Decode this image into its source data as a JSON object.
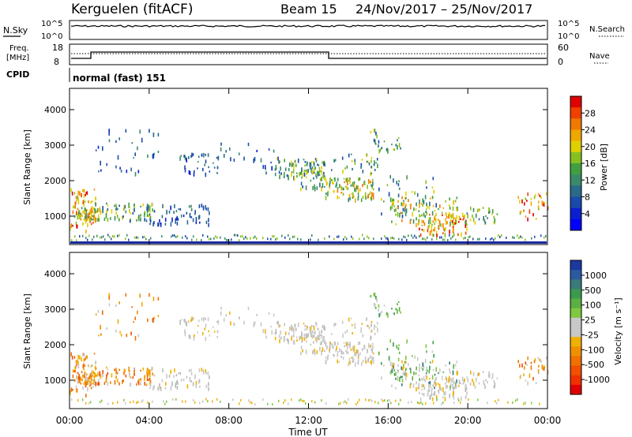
{
  "header": {
    "title": "Kerguelen (fitACF)",
    "beam": "Beam 15",
    "date_range": "24/Nov/2017 – 25/Nov/2017"
  },
  "top_panels": {
    "nsky_label": "N.Sky",
    "nsearch_label": "N.Search",
    "nsky_ticks": [
      "10^5",
      "10^0"
    ],
    "nsearch_ticks": [
      "10^5",
      "10^0"
    ],
    "freq_label_1": "Freq.",
    "freq_label_2": "[MHz]",
    "freq_ticks": [
      "18",
      "8"
    ],
    "nave_label": "Nave",
    "nave_ticks": [
      "60",
      "0"
    ],
    "cpid_label": "CPID",
    "cpid_text": "normal (fast) 151"
  },
  "chart_data": [
    {
      "type": "heatmap",
      "name": "power",
      "ylabel": "Slant Range [km]",
      "ylim": [
        200,
        4600
      ],
      "yticks": [
        1000,
        2000,
        3000,
        4000
      ],
      "xlim": [
        0,
        24
      ],
      "colorbar": {
        "label": "Power [dB]",
        "ticks": [
          "28",
          "24",
          "20",
          "16",
          "12",
          "8",
          "4"
        ],
        "colors": [
          "#e00000",
          "#f04000",
          "#f07a00",
          "#f0a800",
          "#e0d000",
          "#88c020",
          "#40a040",
          "#3a8a6a",
          "#2a6a8a",
          "#1a4aaa",
          "#0a20d0",
          "#0000ff"
        ]
      }
    },
    {
      "type": "heatmap",
      "name": "velocity",
      "ylabel": "Slant Range [km]",
      "ylim": [
        200,
        4600
      ],
      "yticks": [
        1000,
        2000,
        3000,
        4000
      ],
      "xlim": [
        0,
        24
      ],
      "xticks": [
        "00:00",
        "04:00",
        "08:00",
        "12:00",
        "16:00",
        "20:00",
        "00:00"
      ],
      "xlabel": "Time UT",
      "colorbar": {
        "label": "Velocity [m s⁻¹]",
        "ticks": [
          "1000",
          "500",
          "100",
          "25",
          "-25",
          "-100",
          "-500",
          "-1000"
        ],
        "colors": [
          "#1a3aa0",
          "#2a5aa0",
          "#3a7a7a",
          "#3a9a50",
          "#5ab040",
          "#80c840",
          "#c8c8c8",
          "#c8c8c8",
          "#f0b000",
          "#f09000",
          "#f07000",
          "#f05000",
          "#f03000",
          "#e00000"
        ]
      }
    }
  ]
}
